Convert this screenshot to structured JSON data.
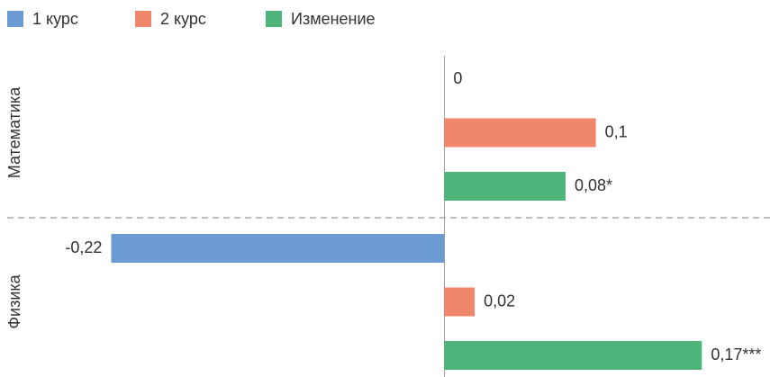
{
  "chart_data": {
    "type": "barh",
    "categories": [
      "Математика",
      "Физика"
    ],
    "series": [
      {
        "name": "1 курс",
        "color": "#6b9bd2",
        "values": [
          0,
          -0.22
        ],
        "value_labels": [
          "0",
          "-0,22"
        ]
      },
      {
        "name": "2 курс",
        "color": "#f0876a",
        "values": [
          0.1,
          0.02
        ],
        "value_labels": [
          "0,1",
          "0,02"
        ]
      },
      {
        "name": "Изменение",
        "color": "#4db57a",
        "values": [
          0.08,
          0.17
        ],
        "value_labels": [
          "0,08*",
          "0,17***"
        ]
      }
    ],
    "xlim": [
      -0.25,
      0.215
    ]
  }
}
